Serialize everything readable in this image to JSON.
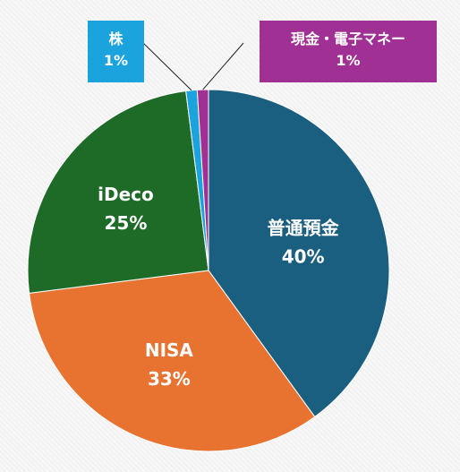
{
  "chart_data": {
    "type": "pie",
    "slices": [
      {
        "label": "普通預金",
        "value": 40,
        "percent_label": "40%",
        "color": "#1b5f80"
      },
      {
        "label": "NISA",
        "value": 33,
        "percent_label": "33%",
        "color": "#e87331"
      },
      {
        "label": "iDeco",
        "value": 25,
        "percent_label": "25%",
        "color": "#1e6b28"
      },
      {
        "label": "株",
        "value": 1,
        "percent_label": "1%",
        "color": "#1aa3dc"
      },
      {
        "label": "現金・電子マネー",
        "value": 1,
        "percent_label": "1%",
        "color": "#a03093"
      }
    ],
    "start": "12 o'clock",
    "direction": "clockwise",
    "legend": "none",
    "data_labels": "inside for large slices, callout boxes for small slices"
  }
}
